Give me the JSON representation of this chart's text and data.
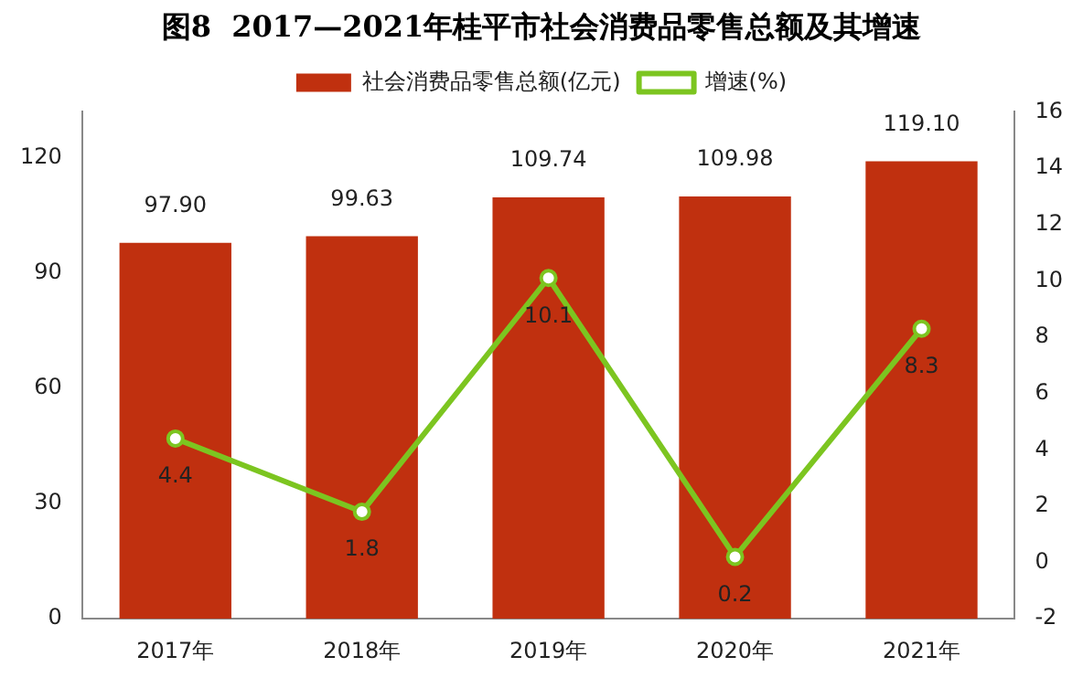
{
  "chart_data": {
    "type": "bar",
    "title": "图8  2017—2021年桂平市社会消费品零售总额及其增速",
    "categories": [
      "2017年",
      "2018年",
      "2019年",
      "2020年",
      "2021年"
    ],
    "series": [
      {
        "name": "社会消费品零售总额(亿元)",
        "color": "#c0300f",
        "values": [
          97.9,
          99.63,
          109.74,
          109.98,
          119.1
        ],
        "value_labels": [
          "97.90",
          "99.63",
          "109.74",
          "109.98",
          "119.10"
        ]
      },
      {
        "type": "line",
        "name": "增速(%)",
        "color": "#7cc520",
        "axis": "y2",
        "marker": "circle",
        "values": [
          4.4,
          1.8,
          10.1,
          0.2,
          8.3
        ],
        "value_labels": [
          "4.4",
          "1.8",
          "10.1",
          "0.2",
          "8.3"
        ]
      }
    ],
    "ylim": [
      0,
      132
    ],
    "yticks": [
      0,
      30,
      60,
      90,
      120
    ],
    "y2lim": [
      -2,
      16
    ],
    "y2ticks": [
      -2,
      0,
      2,
      4,
      6,
      8,
      10,
      12,
      14,
      16
    ],
    "grid": false,
    "legend": "top"
  }
}
